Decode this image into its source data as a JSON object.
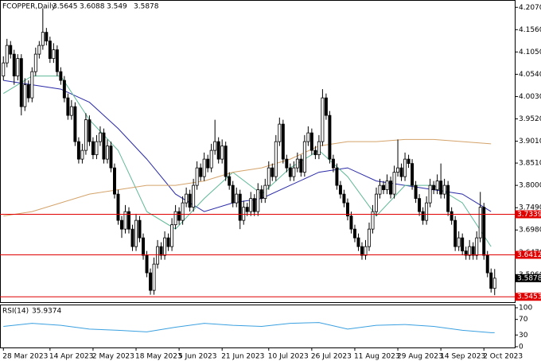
{
  "chart_data": {
    "type": "candlestick",
    "symbol": "FCOPPER,Daily",
    "ylim": [
      3.533,
      4.222
    ],
    "yticks": [
      {
        "value": 4.207,
        "label": "4.2070"
      },
      {
        "value": 4.156,
        "label": "4.1560"
      },
      {
        "value": 4.105,
        "label": "4.1050"
      },
      {
        "value": 4.054,
        "label": "4.0540"
      },
      {
        "value": 4.003,
        "label": "4.0030"
      },
      {
        "value": 3.952,
        "label": "3.9520"
      },
      {
        "value": 3.901,
        "label": "3.9010"
      },
      {
        "value": 3.851,
        "label": "3.8510"
      },
      {
        "value": 3.8,
        "label": "3.8000"
      },
      {
        "value": 3.749,
        "label": "3.7490"
      },
      {
        "value": 3.698,
        "label": "3.6980"
      },
      {
        "value": 3.647,
        "label": "3.6470"
      },
      {
        "value": 3.596,
        "label": "3.5960"
      }
    ],
    "levels": [
      {
        "value": 3.7339,
        "label": "3.7339",
        "color": "#e00000"
      },
      {
        "value": 3.6412,
        "label": "3.6412",
        "color": "#e00000"
      },
      {
        "value": 3.5453,
        "label": "3.5453",
        "color": "#e00000"
      }
    ],
    "categories": [
      "28 Mar 2023",
      null,
      null,
      null,
      null,
      null,
      null,
      null,
      null,
      null,
      null,
      null,
      null,
      "14 Apr 2023",
      null,
      null,
      null,
      null,
      null,
      null,
      null,
      null,
      null,
      null,
      null,
      "2 May 2023",
      null,
      null,
      null,
      null,
      null,
      null,
      null,
      null,
      null,
      null,
      null,
      "18 May 2023",
      null,
      null,
      null,
      null,
      null,
      null,
      null,
      null,
      null,
      null,
      null,
      "5 Jun 2023",
      null,
      null,
      null,
      null,
      null,
      null,
      null,
      null,
      null,
      null,
      null,
      "21 Jun 2023",
      null,
      null,
      null,
      null,
      null,
      null,
      null,
      null,
      null,
      null,
      null,
      null,
      "10 Jul 2023",
      null,
      null,
      null,
      null,
      null,
      null,
      null,
      null,
      null,
      null,
      null,
      "26 Jul 2023",
      null,
      null,
      null,
      null,
      null,
      null,
      null,
      null,
      null,
      null,
      null,
      "11 Aug 2023",
      null,
      null,
      null,
      null,
      null,
      null,
      null,
      null,
      null,
      null,
      null,
      "29 Aug 2023",
      null,
      null,
      null,
      null,
      null,
      null,
      null,
      null,
      null,
      null,
      null,
      "14 Sep 2023",
      null,
      null,
      null,
      null,
      null,
      null,
      null,
      null,
      null,
      null,
      null,
      "2 Oct 2023",
      null,
      null,
      null
    ],
    "candles": [
      [
        4.05,
        4.095,
        4.04,
        4.08
      ],
      [
        4.08,
        4.135,
        4.07,
        4.12
      ],
      [
        4.12,
        4.13,
        4.09,
        4.1
      ],
      [
        4.1,
        4.11,
        4.03,
        4.05
      ],
      [
        4.05,
        4.1,
        4.04,
        4.09
      ],
      [
        4.09,
        4.1,
        3.96,
        3.98
      ],
      [
        3.98,
        4.045,
        3.97,
        4.03
      ],
      [
        4.03,
        4.04,
        3.99,
        4.0
      ],
      [
        4.0,
        4.07,
        3.99,
        4.06
      ],
      [
        4.06,
        4.115,
        4.05,
        4.1
      ],
      [
        4.1,
        4.13,
        4.09,
        4.12
      ],
      [
        4.12,
        4.205,
        4.11,
        4.15
      ],
      [
        4.15,
        4.16,
        4.12,
        4.13
      ],
      [
        4.13,
        4.14,
        4.08,
        4.09
      ],
      [
        4.09,
        4.125,
        4.08,
        4.11
      ],
      [
        4.11,
        4.12,
        4.05,
        4.06
      ],
      [
        4.06,
        4.07,
        4.03,
        4.04
      ],
      [
        4.04,
        4.05,
        3.99,
        4.0
      ],
      [
        4.0,
        4.01,
        3.95,
        3.96
      ],
      [
        3.96,
        3.995,
        3.95,
        3.98
      ],
      [
        3.98,
        3.99,
        3.89,
        3.9
      ],
      [
        3.9,
        3.91,
        3.85,
        3.86
      ],
      [
        3.86,
        3.895,
        3.85,
        3.88
      ],
      [
        3.88,
        3.965,
        3.87,
        3.95
      ],
      [
        3.95,
        3.96,
        3.89,
        3.9
      ],
      [
        3.9,
        3.91,
        3.86,
        3.87
      ],
      [
        3.87,
        3.915,
        3.86,
        3.9
      ],
      [
        3.9,
        3.935,
        3.89,
        3.92
      ],
      [
        3.92,
        3.93,
        3.85,
        3.86
      ],
      [
        3.86,
        3.905,
        3.85,
        3.89
      ],
      [
        3.89,
        3.9,
        3.83,
        3.84
      ],
      [
        3.84,
        3.85,
        3.77,
        3.78
      ],
      [
        3.78,
        3.79,
        3.71,
        3.72
      ],
      [
        3.72,
        3.73,
        3.68,
        3.7
      ],
      [
        3.7,
        3.755,
        3.69,
        3.74
      ],
      [
        3.74,
        3.75,
        3.69,
        3.7
      ],
      [
        3.7,
        3.71,
        3.65,
        3.66
      ],
      [
        3.66,
        3.735,
        3.65,
        3.72
      ],
      [
        3.72,
        3.73,
        3.67,
        3.68
      ],
      [
        3.68,
        3.69,
        3.63,
        3.64
      ],
      [
        3.64,
        3.65,
        3.59,
        3.6
      ],
      [
        3.6,
        3.61,
        3.55,
        3.56
      ],
      [
        3.56,
        3.635,
        3.55,
        3.62
      ],
      [
        3.62,
        3.675,
        3.61,
        3.66
      ],
      [
        3.66,
        3.67,
        3.63,
        3.64
      ],
      [
        3.64,
        3.695,
        3.63,
        3.68
      ],
      [
        3.68,
        3.69,
        3.65,
        3.66
      ],
      [
        3.66,
        3.725,
        3.65,
        3.71
      ],
      [
        3.71,
        3.755,
        3.7,
        3.74
      ],
      [
        3.74,
        3.75,
        3.71,
        3.72
      ],
      [
        3.72,
        3.775,
        3.71,
        3.76
      ],
      [
        3.76,
        3.795,
        3.75,
        3.78
      ],
      [
        3.78,
        3.79,
        3.74,
        3.75
      ],
      [
        3.75,
        3.815,
        3.74,
        3.8
      ],
      [
        3.8,
        3.855,
        3.79,
        3.84
      ],
      [
        3.84,
        3.85,
        3.81,
        3.82
      ],
      [
        3.82,
        3.875,
        3.81,
        3.86
      ],
      [
        3.86,
        3.87,
        3.83,
        3.84
      ],
      [
        3.84,
        3.895,
        3.83,
        3.88
      ],
      [
        3.88,
        3.95,
        3.87,
        3.9
      ],
      [
        3.9,
        3.91,
        3.85,
        3.86
      ],
      [
        3.86,
        3.905,
        3.85,
        3.89
      ],
      [
        3.89,
        3.9,
        3.81,
        3.82
      ],
      [
        3.82,
        3.83,
        3.79,
        3.8
      ],
      [
        3.8,
        3.81,
        3.75,
        3.76
      ],
      [
        3.76,
        3.795,
        3.75,
        3.78
      ],
      [
        3.78,
        3.79,
        3.7,
        3.72
      ],
      [
        3.72,
        3.765,
        3.71,
        3.75
      ],
      [
        3.75,
        3.76,
        3.73,
        3.74
      ],
      [
        3.74,
        3.785,
        3.73,
        3.77
      ],
      [
        3.77,
        3.78,
        3.73,
        3.74
      ],
      [
        3.74,
        3.805,
        3.73,
        3.79
      ],
      [
        3.79,
        3.8,
        3.76,
        3.77
      ],
      [
        3.77,
        3.815,
        3.76,
        3.8
      ],
      [
        3.8,
        3.855,
        3.79,
        3.84
      ],
      [
        3.84,
        3.85,
        3.81,
        3.82
      ],
      [
        3.82,
        3.915,
        3.81,
        3.9
      ],
      [
        3.9,
        3.955,
        3.89,
        3.94
      ],
      [
        3.94,
        3.95,
        3.85,
        3.86
      ],
      [
        3.86,
        3.87,
        3.83,
        3.84
      ],
      [
        3.84,
        3.85,
        3.81,
        3.82
      ],
      [
        3.82,
        3.855,
        3.81,
        3.84
      ],
      [
        3.84,
        3.875,
        3.83,
        3.86
      ],
      [
        3.86,
        3.87,
        3.82,
        3.83
      ],
      [
        3.83,
        3.915,
        3.82,
        3.9
      ],
      [
        3.9,
        3.935,
        3.89,
        3.92
      ],
      [
        3.92,
        3.93,
        3.87,
        3.88
      ],
      [
        3.88,
        3.89,
        3.86,
        3.87
      ],
      [
        3.87,
        3.915,
        3.86,
        3.9
      ],
      [
        3.9,
        4.02,
        3.89,
        4.0
      ],
      [
        4.0,
        4.01,
        3.95,
        3.96
      ],
      [
        3.96,
        3.97,
        3.85,
        3.86
      ],
      [
        3.86,
        3.87,
        3.83,
        3.84
      ],
      [
        3.84,
        3.85,
        3.79,
        3.8
      ],
      [
        3.8,
        3.81,
        3.77,
        3.78
      ],
      [
        3.78,
        3.79,
        3.75,
        3.76
      ],
      [
        3.76,
        3.77,
        3.72,
        3.73
      ],
      [
        3.73,
        3.74,
        3.69,
        3.7
      ],
      [
        3.7,
        3.71,
        3.67,
        3.68
      ],
      [
        3.68,
        3.69,
        3.65,
        3.66
      ],
      [
        3.66,
        3.67,
        3.63,
        3.64
      ],
      [
        3.64,
        3.675,
        3.63,
        3.66
      ],
      [
        3.66,
        3.715,
        3.65,
        3.7
      ],
      [
        3.7,
        3.755,
        3.69,
        3.74
      ],
      [
        3.74,
        3.795,
        3.73,
        3.78
      ],
      [
        3.78,
        3.815,
        3.77,
        3.8
      ],
      [
        3.8,
        3.81,
        3.78,
        3.79
      ],
      [
        3.79,
        3.825,
        3.78,
        3.81
      ],
      [
        3.81,
        3.82,
        3.77,
        3.78
      ],
      [
        3.78,
        3.845,
        3.77,
        3.83
      ],
      [
        3.83,
        3.905,
        3.82,
        3.84
      ],
      [
        3.84,
        3.85,
        3.81,
        3.82
      ],
      [
        3.82,
        3.875,
        3.81,
        3.86
      ],
      [
        3.86,
        3.87,
        3.84,
        3.85
      ],
      [
        3.85,
        3.86,
        3.79,
        3.8
      ],
      [
        3.8,
        3.81,
        3.76,
        3.77
      ],
      [
        3.77,
        3.78,
        3.73,
        3.74
      ],
      [
        3.74,
        3.75,
        3.71,
        3.72
      ],
      [
        3.72,
        3.775,
        3.71,
        3.76
      ],
      [
        3.76,
        3.815,
        3.75,
        3.8
      ],
      [
        3.8,
        3.81,
        3.78,
        3.79
      ],
      [
        3.79,
        3.825,
        3.78,
        3.81
      ],
      [
        3.81,
        3.85,
        3.77,
        3.78
      ],
      [
        3.78,
        3.815,
        3.77,
        3.8
      ],
      [
        3.8,
        3.81,
        3.73,
        3.74
      ],
      [
        3.74,
        3.75,
        3.71,
        3.72
      ],
      [
        3.72,
        3.73,
        3.65,
        3.66
      ],
      [
        3.66,
        3.695,
        3.65,
        3.68
      ],
      [
        3.68,
        3.69,
        3.64,
        3.65
      ],
      [
        3.65,
        3.66,
        3.63,
        3.64
      ],
      [
        3.64,
        3.675,
        3.63,
        3.66
      ],
      [
        3.66,
        3.67,
        3.63,
        3.64
      ],
      [
        3.64,
        3.695,
        3.63,
        3.68
      ],
      [
        3.68,
        3.785,
        3.67,
        3.75
      ],
      [
        3.75,
        3.76,
        3.63,
        3.64
      ],
      [
        3.64,
        3.65,
        3.59,
        3.6
      ],
      [
        3.6,
        3.61,
        3.555,
        3.5645
      ],
      [
        3.5645,
        3.6088,
        3.549,
        3.5878
      ]
    ],
    "moving_averages": [
      {
        "color": "#2a2aa8",
        "x": [
          0,
          8,
          16,
          24,
          32,
          40,
          48,
          56,
          64,
          72,
          80,
          88,
          96,
          104,
          112,
          120,
          128,
          136
        ],
        "values": [
          4.04,
          4.03,
          4.02,
          3.99,
          3.93,
          3.86,
          3.78,
          3.74,
          3.76,
          3.77,
          3.8,
          3.83,
          3.84,
          3.81,
          3.8,
          3.79,
          3.78,
          3.74
        ]
      },
      {
        "color": "#5fb896",
        "x": [
          0,
          8,
          16,
          24,
          32,
          40,
          48,
          56,
          64,
          72,
          80,
          88,
          96,
          104,
          112,
          120,
          128,
          136
        ],
        "values": [
          4.01,
          4.05,
          4.05,
          3.95,
          3.88,
          3.74,
          3.7,
          3.77,
          3.83,
          3.78,
          3.84,
          3.88,
          3.82,
          3.73,
          3.8,
          3.8,
          3.76,
          3.66
        ]
      },
      {
        "color": "#d4a36a",
        "x": [
          0,
          8,
          16,
          24,
          32,
          40,
          48,
          56,
          64,
          72,
          80,
          88,
          96,
          104,
          112,
          120,
          128,
          136
        ],
        "values": [
          3.73,
          3.74,
          3.76,
          3.78,
          3.79,
          3.8,
          3.8,
          3.81,
          3.83,
          3.84,
          3.86,
          3.89,
          3.9,
          3.9,
          3.905,
          3.905,
          3.9,
          3.895
        ]
      }
    ],
    "rsi": {
      "name": "RSI(14)",
      "color": "#3aa0e0",
      "ylim": [
        0,
        100
      ],
      "yticks": [
        100,
        70,
        30,
        0
      ],
      "x": [
        0,
        8,
        16,
        24,
        32,
        40,
        48,
        56,
        64,
        72,
        80,
        88,
        96,
        104,
        112,
        120,
        128,
        136,
        137
      ],
      "values": [
        52,
        60,
        55,
        45,
        42,
        38,
        50,
        60,
        55,
        52,
        60,
        62,
        45,
        55,
        57,
        52,
        42,
        36,
        35.9374
      ]
    }
  }
}
